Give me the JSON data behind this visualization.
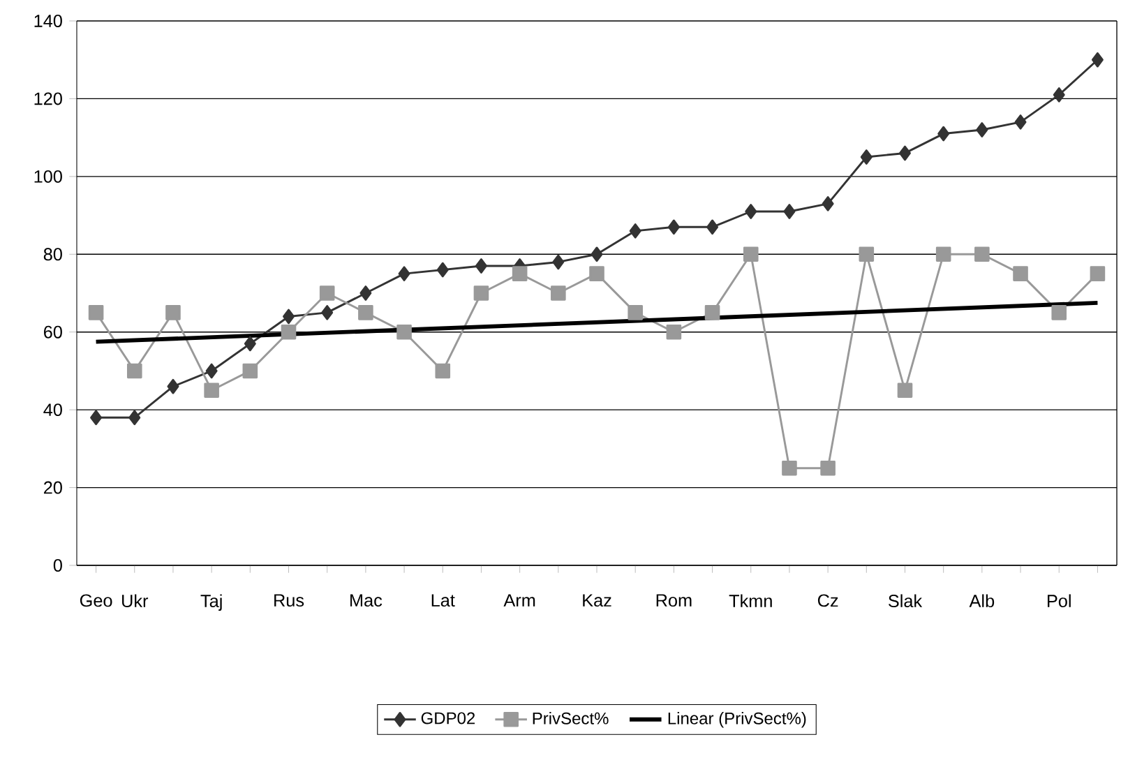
{
  "chart_data": {
    "type": "line",
    "categories": [
      "Geo",
      "Ukr",
      null,
      "Taj",
      null,
      "Rus",
      null,
      "Mac",
      null,
      "Lat",
      null,
      "Arm",
      null,
      "Kaz",
      null,
      "Rom",
      null,
      "Tkmn",
      null,
      "Cz",
      null,
      "Slak",
      null,
      "Alb",
      null,
      "Pol",
      null
    ],
    "series": [
      {
        "name": "GDP02",
        "color": "#333333",
        "marker": "diamond",
        "values": [
          38,
          38,
          46,
          50,
          57,
          64,
          65,
          70,
          75,
          76,
          77,
          77,
          78,
          80,
          86,
          87,
          87,
          91,
          91,
          93,
          105,
          106,
          111,
          112,
          114,
          121,
          130
        ]
      },
      {
        "name": "PrivSect%",
        "color": "#999999",
        "marker": "square",
        "values": [
          65,
          50,
          65,
          45,
          50,
          60,
          70,
          65,
          60,
          50,
          70,
          75,
          70,
          75,
          65,
          60,
          65,
          80,
          25,
          25,
          80,
          45,
          80,
          80,
          75,
          65,
          75
        ]
      },
      {
        "name": "Linear (PrivSect%)",
        "color": "#000000",
        "marker": "none",
        "values": [
          57.5,
          null,
          null,
          null,
          null,
          null,
          null,
          null,
          null,
          null,
          null,
          null,
          null,
          null,
          null,
          null,
          null,
          null,
          null,
          null,
          null,
          null,
          null,
          null,
          null,
          null,
          67.5
        ]
      }
    ],
    "ylim": [
      0,
      140
    ],
    "yticks": [
      0,
      20,
      40,
      60,
      80,
      100,
      120,
      140
    ],
    "grid": "y",
    "legend": "bottom"
  }
}
